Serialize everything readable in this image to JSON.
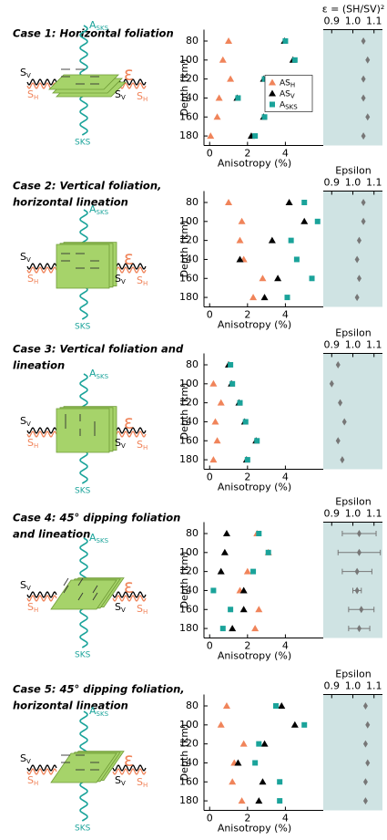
{
  "diagrams": [
    {
      "title_lines": [
        "Case 1: Horizontal foliation"
      ],
      "a_sks": "ASKS",
      "sv": "SV",
      "sh": "SH",
      "epsilon": "ε",
      "sks": "SKS"
    },
    {
      "title_lines": [
        "Case 2: Vertical foliation,",
        "horizontal lineation"
      ],
      "a_sks": "ASKS",
      "sv": "SV",
      "sh": "SH",
      "epsilon": "ε",
      "sks": "SKS"
    },
    {
      "title_lines": [
        "Case 3: Vertical foliation and",
        "lineation"
      ],
      "a_sks": "ASKS",
      "sv": "SV",
      "sh": "SH",
      "epsilon": "ε",
      "sks": "SKS"
    },
    {
      "title_lines": [
        "Case 4: 45° dipping foliation",
        "and lineation"
      ],
      "a_sks": "ASKS",
      "sv": "SV",
      "sh": "SH",
      "epsilon": "ε",
      "sks": "SKS"
    },
    {
      "title_lines": [
        "Case 5: 45° dipping foliation,",
        "horizontal lineation"
      ],
      "a_sks": "ASKS",
      "sv": "SV",
      "sh": "SH",
      "epsilon": "ε",
      "sks": "SKS"
    }
  ],
  "chart_data": [
    {
      "type": "scatter",
      "ylabel": "Depth (km)",
      "xlabel": "Anisotropy (%)",
      "depths": [
        80,
        100,
        120,
        140,
        160,
        180
      ],
      "xlim": [
        -0.3,
        6
      ],
      "xticks": [
        0,
        2,
        4
      ],
      "ylim": [
        68,
        190
      ],
      "yticks": [
        80,
        100,
        120,
        140,
        160,
        180
      ],
      "legend": "center right",
      "series": [
        {
          "name": "ASH",
          "color": "#f0845a",
          "marker": "triangle",
          "values": [
            1.0,
            0.7,
            1.1,
            0.5,
            0.4,
            0.05
          ]
        },
        {
          "name": "ASV",
          "color": "#000000",
          "marker": "triangle",
          "values": [
            3.95,
            4.4,
            2.85,
            1.45,
            2.85,
            2.2
          ]
        },
        {
          "name": "ASKS",
          "color": "#1aa39a",
          "marker": "square",
          "values": [
            4.0,
            4.5,
            2.9,
            1.5,
            2.9,
            2.4
          ]
        }
      ],
      "x2label": "ε = (SH/SV)²",
      "x2lim": [
        0.86,
        1.14
      ],
      "x2ticks": [
        0.9,
        {
          "value": 1,
          "label": "1.0"
        },
        1.1
      ],
      "x2_background": "#cfe3e3",
      "epsilon": {
        "color": "#777777",
        "values": [
          1.05,
          1.07,
          1.05,
          1.05,
          1.07,
          1.05
        ]
      }
    },
    {
      "type": "scatter",
      "ylabel": "Depth (km)",
      "xlabel": "Anisotropy (%)",
      "depths": [
        80,
        100,
        120,
        140,
        160,
        180
      ],
      "xlim": [
        -0.3,
        6
      ],
      "xticks": [
        0,
        2,
        4
      ],
      "ylim": [
        68,
        190
      ],
      "yticks": [
        80,
        100,
        120,
        140,
        160,
        180
      ],
      "series": [
        {
          "name": "ASH",
          "color": "#f0845a",
          "marker": "triangle",
          "values": [
            1.0,
            1.7,
            1.6,
            1.8,
            2.8,
            2.3
          ]
        },
        {
          "name": "ASV",
          "color": "#000000",
          "marker": "triangle",
          "values": [
            4.2,
            5.0,
            3.3,
            1.6,
            3.6,
            2.9
          ]
        },
        {
          "name": "ASKS",
          "color": "#1aa39a",
          "marker": "square",
          "values": [
            5.0,
            5.7,
            4.3,
            4.6,
            5.4,
            4.1
          ]
        }
      ],
      "x2label": "Epsilon",
      "x2lim": [
        0.86,
        1.14
      ],
      "x2ticks": [
        0.9,
        {
          "value": 1,
          "label": "1.0"
        },
        1.1
      ],
      "x2_background": "#cfe3e3",
      "epsilon": {
        "color": "#777777",
        "values": [
          1.05,
          1.05,
          1.03,
          1.02,
          1.03,
          1.02
        ]
      }
    },
    {
      "type": "scatter",
      "ylabel": "Depth (km)",
      "xlabel": "Anisotropy (%)",
      "depths": [
        80,
        100,
        120,
        140,
        160,
        180
      ],
      "xlim": [
        -0.3,
        6
      ],
      "xticks": [
        0,
        2,
        4
      ],
      "ylim": [
        68,
        190
      ],
      "yticks": [
        80,
        100,
        120,
        140,
        160,
        180
      ],
      "series": [
        {
          "name": "ASH",
          "color": "#f0845a",
          "marker": "triangle",
          "values": [
            1.0,
            0.2,
            0.6,
            0.3,
            0.4,
            0.2
          ]
        },
        {
          "name": "ASV",
          "color": "#000000",
          "marker": "triangle",
          "values": [
            1.0,
            1.15,
            1.55,
            1.85,
            2.45,
            1.95
          ]
        },
        {
          "name": "ASKS",
          "color": "#1aa39a",
          "marker": "square",
          "values": [
            1.1,
            1.2,
            1.6,
            1.9,
            2.5,
            2.0
          ]
        }
      ],
      "x2label": "Epsilon",
      "x2lim": [
        0.86,
        1.14
      ],
      "x2ticks": [
        0.9,
        {
          "value": 1,
          "label": "1.0"
        },
        1.1
      ],
      "x2_background": "#cfe3e3",
      "epsilon": {
        "color": "#777777",
        "values": [
          0.93,
          0.9,
          0.94,
          0.96,
          0.93,
          0.95
        ]
      }
    },
    {
      "type": "scatter",
      "ylabel": "Depth (km)",
      "xlabel": "Anisotropy (%)",
      "depths": [
        80,
        100,
        120,
        140,
        160,
        180
      ],
      "xlim": [
        -0.3,
        6
      ],
      "xticks": [
        0,
        2,
        4
      ],
      "ylim": [
        68,
        190
      ],
      "yticks": [
        80,
        100,
        120,
        140,
        160,
        180
      ],
      "series": [
        {
          "name": "ASH",
          "color": "#f0845a",
          "marker": "triangle",
          "values": [
            2.5,
            3.1,
            2.0,
            1.6,
            2.6,
            2.4
          ]
        },
        {
          "name": "ASV",
          "color": "#000000",
          "marker": "triangle",
          "values": [
            0.9,
            0.8,
            0.6,
            1.8,
            1.8,
            1.2
          ]
        },
        {
          "name": "ASKS",
          "color": "#1aa39a",
          "marker": "square",
          "values": [
            2.6,
            3.1,
            2.3,
            0.2,
            1.1,
            0.7
          ]
        }
      ],
      "x2label": "Epsilon",
      "x2lim": [
        0.86,
        1.14
      ],
      "x2ticks": [
        0.9,
        {
          "value": 1,
          "label": "1.0"
        },
        1.1
      ],
      "x2_background": "#cfe3e3",
      "epsilon": {
        "color": "#777777",
        "values": [
          1.03,
          1.03,
          1.02,
          1.02,
          1.04,
          1.03
        ],
        "errors": [
          0.08,
          0.1,
          0.07,
          0.02,
          0.06,
          0.05
        ]
      }
    },
    {
      "type": "scatter",
      "ylabel": "Depth (km)",
      "xlabel": "Anisotropy (%)",
      "depths": [
        80,
        100,
        120,
        140,
        160,
        180
      ],
      "xlim": [
        -0.3,
        6
      ],
      "xticks": [
        0,
        2,
        4
      ],
      "ylim": [
        68,
        190
      ],
      "yticks": [
        80,
        100,
        120,
        140,
        160,
        180
      ],
      "series": [
        {
          "name": "ASH",
          "color": "#f0845a",
          "marker": "triangle",
          "values": [
            0.9,
            0.6,
            1.8,
            1.3,
            1.2,
            1.7
          ]
        },
        {
          "name": "ASV",
          "color": "#000000",
          "marker": "triangle",
          "values": [
            3.8,
            4.5,
            2.9,
            1.5,
            2.8,
            2.6
          ]
        },
        {
          "name": "ASKS",
          "color": "#1aa39a",
          "marker": "square",
          "values": [
            3.5,
            5.0,
            2.6,
            2.4,
            3.7,
            3.7
          ]
        }
      ],
      "x2label": "Epsilon",
      "x2lim": [
        0.86,
        1.14
      ],
      "x2ticks": [
        0.9,
        {
          "value": 1,
          "label": "1.0"
        },
        1.1
      ],
      "x2_background": "#cfe3e3",
      "epsilon": {
        "color": "#777777",
        "values": [
          1.06,
          1.07,
          1.06,
          1.07,
          1.06,
          1.06
        ]
      }
    }
  ]
}
